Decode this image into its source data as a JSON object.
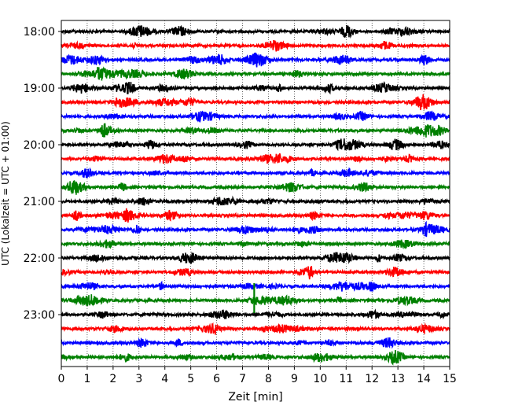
{
  "chart_data": {
    "type": "line",
    "title": "",
    "xlabel": "Zeit  [min]",
    "ylabel": "UTC (Lokalzeit = UTC + 01:00)",
    "xlim": [
      0,
      15
    ],
    "x_ticks": [
      "0",
      "1",
      "2",
      "3",
      "4",
      "5",
      "6",
      "7",
      "8",
      "9",
      "10",
      "11",
      "12",
      "13",
      "14",
      "15"
    ],
    "y_ticks": [
      "18:00",
      "19:00",
      "20:00",
      "21:00",
      "22:00",
      "23:00"
    ],
    "grid": "vertical dotted",
    "trace_interval_minutes": 15,
    "colors": [
      "#000000",
      "#ff0000",
      "#0000ff",
      "#008000"
    ],
    "traces": [
      {
        "start": "18:00",
        "color": "#000000"
      },
      {
        "start": "18:15",
        "color": "#ff0000"
      },
      {
        "start": "18:30",
        "color": "#0000ff"
      },
      {
        "start": "18:45",
        "color": "#008000"
      },
      {
        "start": "19:00",
        "color": "#000000"
      },
      {
        "start": "19:15",
        "color": "#ff0000"
      },
      {
        "start": "19:30",
        "color": "#0000ff"
      },
      {
        "start": "19:45",
        "color": "#008000"
      },
      {
        "start": "20:00",
        "color": "#000000"
      },
      {
        "start": "20:15",
        "color": "#ff0000"
      },
      {
        "start": "20:30",
        "color": "#0000ff"
      },
      {
        "start": "20:45",
        "color": "#008000"
      },
      {
        "start": "21:00",
        "color": "#000000"
      },
      {
        "start": "21:15",
        "color": "#ff0000"
      },
      {
        "start": "21:30",
        "color": "#0000ff"
      },
      {
        "start": "21:45",
        "color": "#008000"
      },
      {
        "start": "22:00",
        "color": "#000000"
      },
      {
        "start": "22:15",
        "color": "#ff0000"
      },
      {
        "start": "22:30",
        "color": "#0000ff"
      },
      {
        "start": "22:45",
        "color": "#008000"
      },
      {
        "start": "23:00",
        "color": "#000000"
      },
      {
        "start": "23:15",
        "color": "#ff0000"
      },
      {
        "start": "23:30",
        "color": "#0000ff"
      },
      {
        "start": "23:45",
        "color": "#008000"
      }
    ],
    "events": [
      {
        "trace": "22:45",
        "minute": 7.45,
        "note": "spike"
      }
    ]
  }
}
